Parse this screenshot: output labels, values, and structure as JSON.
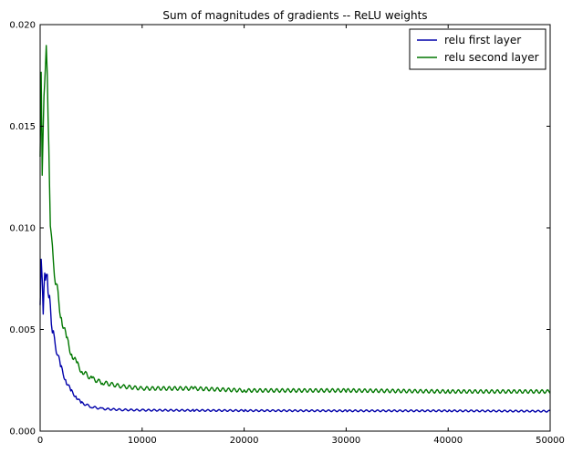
{
  "chart_data": {
    "type": "line",
    "title": "Sum of magnitudes of gradients -- ReLU weights",
    "xlabel": "",
    "ylabel": "",
    "xlim": [
      0,
      50000
    ],
    "ylim": [
      0.0,
      0.02
    ],
    "x_ticks": [
      0,
      10000,
      20000,
      30000,
      40000,
      50000
    ],
    "x_tick_labels": [
      "0",
      "10000",
      "20000",
      "30000",
      "40000",
      "50000"
    ],
    "y_ticks": [
      0.0,
      0.005,
      0.01,
      0.015,
      0.02
    ],
    "y_tick_labels": [
      "0.000",
      "0.005",
      "0.010",
      "0.015",
      "0.020"
    ],
    "grid": false,
    "legend_position": "top-right",
    "series": [
      {
        "name": "relu first layer",
        "color": "#0000aa",
        "x": [
          0,
          100,
          200,
          300,
          450,
          600,
          700,
          850,
          1000,
          1200,
          1500,
          2000,
          2500,
          3000,
          3500,
          4000,
          5000,
          6000,
          8000,
          10000,
          15000,
          20000,
          30000,
          40000,
          50000
        ],
        "y": [
          0.0062,
          0.0088,
          0.0072,
          0.006,
          0.0075,
          0.008,
          0.0074,
          0.0068,
          0.006,
          0.005,
          0.0042,
          0.0032,
          0.0025,
          0.002,
          0.0017,
          0.0014,
          0.0012,
          0.0011,
          0.00105,
          0.00103,
          0.00102,
          0.00101,
          0.001,
          0.001,
          0.00098
        ]
      },
      {
        "name": "relu second layer",
        "color": "#007700",
        "x": [
          0,
          100,
          200,
          300,
          450,
          600,
          700,
          850,
          1000,
          1200,
          1500,
          2000,
          2500,
          3000,
          3500,
          4000,
          5000,
          6000,
          8000,
          10000,
          15000,
          20000,
          30000,
          40000,
          50000
        ],
        "y": [
          0.0135,
          0.0178,
          0.0125,
          0.015,
          0.0178,
          0.0183,
          0.0175,
          0.0135,
          0.0105,
          0.0088,
          0.0075,
          0.0058,
          0.0047,
          0.0039,
          0.0034,
          0.003,
          0.0026,
          0.0024,
          0.0022,
          0.0021,
          0.0021,
          0.002,
          0.002,
          0.00195,
          0.00195
        ]
      }
    ]
  }
}
